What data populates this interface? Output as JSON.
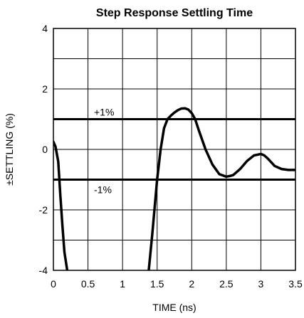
{
  "chart_data": {
    "type": "line",
    "title": "Step Response Settling Time",
    "xlabel": "TIME (ns)",
    "ylabel": "±SETTLING (%)",
    "xlim": [
      0,
      3.5
    ],
    "ylim": [
      -4,
      4
    ],
    "grid": true,
    "x_ticks": [
      "0",
      "0.5",
      "1",
      "1.5",
      "2",
      "2.5",
      "3",
      "3.5"
    ],
    "y_ticks": [
      "4",
      "2",
      "0",
      "-2",
      "-4"
    ],
    "bands": [
      {
        "label": "+1%",
        "y": 1
      },
      {
        "label": "-1%",
        "y": -1
      }
    ],
    "series": [
      {
        "x": [
          0.0,
          0.03,
          0.07,
          0.1,
          0.13,
          0.16,
          0.2,
          0.22,
          1.37,
          1.43,
          1.5,
          1.55,
          1.6,
          1.65,
          1.7,
          1.75,
          1.8,
          1.85,
          1.9,
          1.95,
          2.0,
          2.05,
          2.1,
          2.2,
          2.3,
          2.4,
          2.5,
          2.55,
          2.6,
          2.7,
          2.8,
          2.9,
          3.0,
          3.05,
          3.1,
          3.2,
          3.3,
          3.4,
          3.5
        ],
        "y": [
          0.25,
          0.1,
          -0.4,
          -1.5,
          -2.5,
          -3.4,
          -4.0,
          -4.2,
          -4.2,
          -2.8,
          -1.0,
          0.0,
          0.7,
          1.0,
          1.12,
          1.22,
          1.3,
          1.35,
          1.36,
          1.32,
          1.2,
          1.0,
          0.65,
          0.0,
          -0.5,
          -0.82,
          -0.9,
          -0.88,
          -0.85,
          -0.65,
          -0.38,
          -0.2,
          -0.15,
          -0.2,
          -0.3,
          -0.55,
          -0.65,
          -0.68,
          -0.68
        ]
      }
    ]
  }
}
